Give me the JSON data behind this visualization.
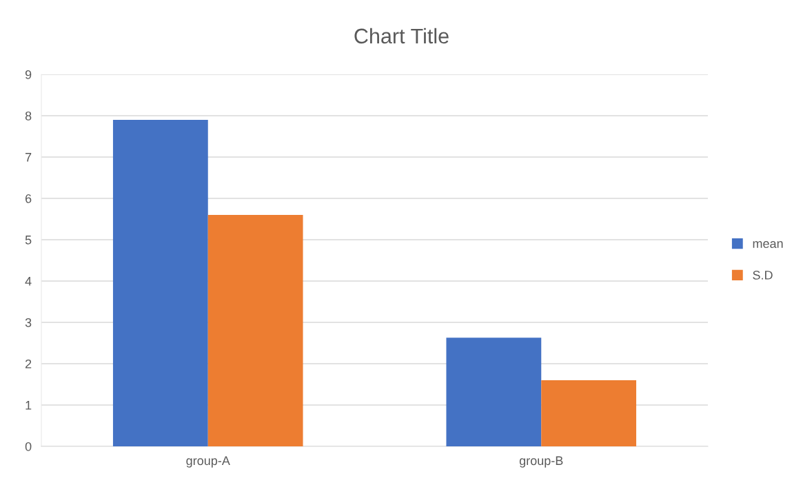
{
  "chart_data": {
    "type": "bar",
    "title": "Chart Title",
    "categories": [
      "group-A",
      "group-B"
    ],
    "series": [
      {
        "name": "mean",
        "color": "#4472c4",
        "values": [
          7.9,
          2.63
        ]
      },
      {
        "name": "S.D",
        "color": "#ed7d31",
        "values": [
          5.6,
          1.6
        ]
      }
    ],
    "ylim": [
      0,
      9
    ],
    "yticks": [
      0,
      1,
      2,
      3,
      4,
      5,
      6,
      7,
      8,
      9
    ],
    "grid": "y",
    "legend": "right"
  }
}
